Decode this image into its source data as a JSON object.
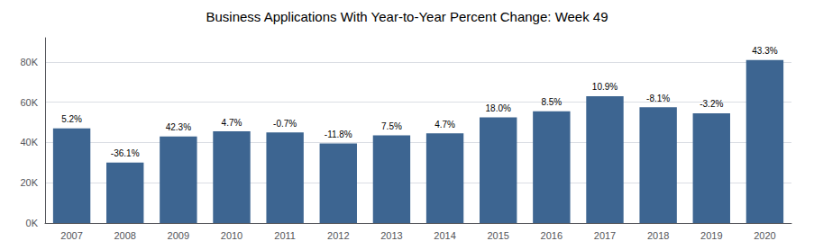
{
  "chart_data": {
    "type": "bar",
    "title": "Business Applications With Year-to-Year Percent Change: Week 49",
    "categories": [
      "2007",
      "2008",
      "2009",
      "2010",
      "2011",
      "2012",
      "2013",
      "2014",
      "2015",
      "2016",
      "2017",
      "2018",
      "2019",
      "2020"
    ],
    "values": [
      47000,
      30000,
      43000,
      45500,
      45000,
      39500,
      43500,
      44500,
      52500,
      55500,
      63000,
      57500,
      54500,
      81000
    ],
    "annotations": [
      {
        "category": "2007",
        "text": "5.2%"
      },
      {
        "category": "2008",
        "text": "-36.1%"
      },
      {
        "category": "2009",
        "text": "42.3%"
      },
      {
        "category": "2010",
        "text": "4.7%"
      },
      {
        "category": "2011",
        "text": "-0.7%"
      },
      {
        "category": "2012",
        "text": "-11.8%"
      },
      {
        "category": "2013",
        "text": "7.5%"
      },
      {
        "category": "2014",
        "text": "4.7%"
      },
      {
        "category": "2015",
        "text": "18.0%"
      },
      {
        "category": "2016",
        "text": "8.5%"
      },
      {
        "category": "2017",
        "text": "10.9%"
      },
      {
        "category": "2018",
        "text": "-8.1%"
      },
      {
        "category": "2019",
        "text": "-3.2%"
      },
      {
        "category": "2020",
        "text": "43.3%"
      }
    ],
    "color": "#3d6591",
    "ylim": [
      0,
      92000
    ],
    "yticks": [
      {
        "value": 0,
        "label": "0K"
      },
      {
        "value": 20000,
        "label": "20K"
      },
      {
        "value": 40000,
        "label": "40K"
      },
      {
        "value": 60000,
        "label": "60K"
      },
      {
        "value": 80000,
        "label": "80K"
      }
    ],
    "grid": true
  }
}
